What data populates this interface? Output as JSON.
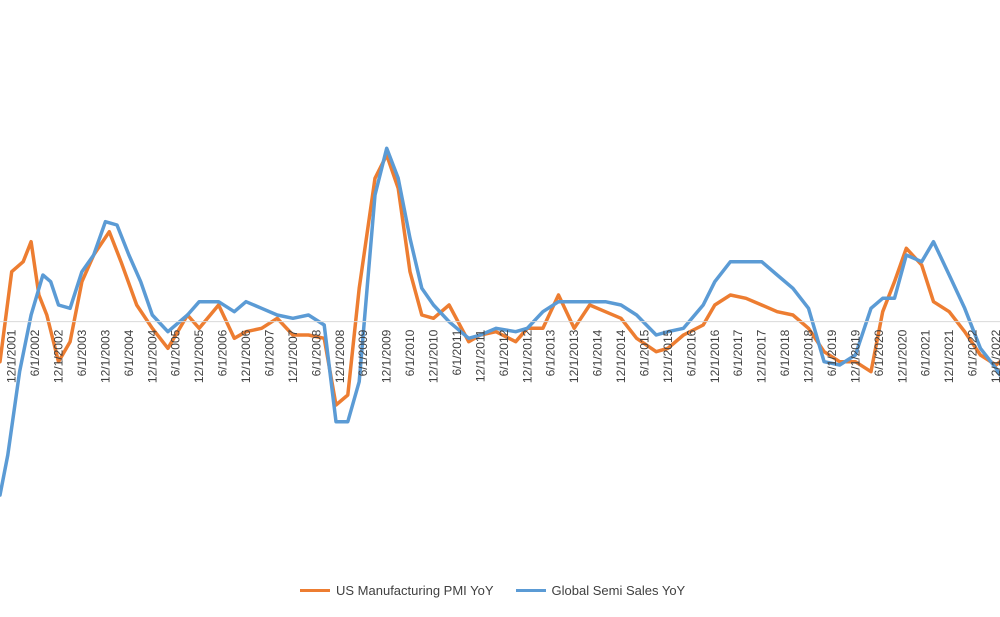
{
  "chart_data": {
    "type": "line",
    "title": "",
    "xlabel": "",
    "ylabel": "",
    "grid": false,
    "legend_position": "bottom",
    "x_tick_labels": [
      "12/1/2001",
      "6/1/2002",
      "12/1/2002",
      "6/1/2003",
      "12/1/2003",
      "6/1/2004",
      "12/1/2004",
      "6/1/2005",
      "12/1/2005",
      "6/1/2006",
      "12/1/2006",
      "6/1/2007",
      "12/1/2007",
      "6/1/2008",
      "12/1/2008",
      "6/1/2009",
      "12/1/2009",
      "6/1/2010",
      "12/1/2010",
      "6/1/2011",
      "12/1/2011",
      "6/1/2012",
      "12/1/2012",
      "6/1/2013",
      "12/1/2013",
      "6/1/2014",
      "12/1/2014",
      "6/1/2015",
      "12/1/2015",
      "6/1/2016",
      "12/1/2016",
      "6/1/2017",
      "12/1/2017",
      "6/1/2018",
      "12/1/2018",
      "6/1/2019",
      "12/1/2019",
      "6/1/2020",
      "12/1/2020",
      "6/1/2021",
      "12/1/2021",
      "6/1/2022",
      "12/1/2022"
    ],
    "x_range": [
      "2001-09-01",
      "2023-01-01"
    ],
    "y_range": [
      -0.55,
      0.8
    ],
    "series": [
      {
        "name": "US Manufacturing PMI YoY",
        "color": "#ED7D31",
        "points": [
          [
            "2001-09-01",
            -0.12
          ],
          [
            "2001-12-01",
            0.15
          ],
          [
            "2002-03-01",
            0.18
          ],
          [
            "2002-05-01",
            0.24
          ],
          [
            "2002-07-01",
            0.08
          ],
          [
            "2002-09-01",
            0.02
          ],
          [
            "2002-12-01",
            -0.12
          ],
          [
            "2003-03-01",
            -0.06
          ],
          [
            "2003-06-01",
            0.12
          ],
          [
            "2003-09-01",
            0.2
          ],
          [
            "2004-01-01",
            0.27
          ],
          [
            "2004-04-01",
            0.18
          ],
          [
            "2004-08-01",
            0.05
          ],
          [
            "2004-12-01",
            -0.02
          ],
          [
            "2005-04-01",
            -0.08
          ],
          [
            "2005-09-01",
            0.02
          ],
          [
            "2005-12-01",
            -0.02
          ],
          [
            "2006-05-01",
            0.05
          ],
          [
            "2006-09-01",
            -0.05
          ],
          [
            "2006-12-01",
            -0.03
          ],
          [
            "2007-04-01",
            -0.02
          ],
          [
            "2007-08-01",
            0.01
          ],
          [
            "2007-12-01",
            -0.04
          ],
          [
            "2008-04-01",
            -0.04
          ],
          [
            "2008-08-01",
            -0.05
          ],
          [
            "2008-11-01",
            -0.25
          ],
          [
            "2009-02-01",
            -0.22
          ],
          [
            "2009-05-01",
            0.1
          ],
          [
            "2009-09-01",
            0.43
          ],
          [
            "2009-12-01",
            0.5
          ],
          [
            "2010-03-01",
            0.4
          ],
          [
            "2010-06-01",
            0.15
          ],
          [
            "2010-09-01",
            0.02
          ],
          [
            "2010-12-01",
            0.01
          ],
          [
            "2011-04-01",
            0.05
          ],
          [
            "2011-09-01",
            -0.06
          ],
          [
            "2011-12-01",
            -0.04
          ],
          [
            "2012-04-01",
            -0.03
          ],
          [
            "2012-09-01",
            -0.06
          ],
          [
            "2012-12-01",
            -0.02
          ],
          [
            "2013-04-01",
            -0.02
          ],
          [
            "2013-08-01",
            0.08
          ],
          [
            "2013-12-01",
            -0.02
          ],
          [
            "2014-04-01",
            0.05
          ],
          [
            "2014-08-01",
            0.03
          ],
          [
            "2014-12-01",
            0.01
          ],
          [
            "2015-04-01",
            -0.05
          ],
          [
            "2015-09-01",
            -0.09
          ],
          [
            "2015-12-01",
            -0.08
          ],
          [
            "2016-04-01",
            -0.04
          ],
          [
            "2016-09-01",
            -0.01
          ],
          [
            "2016-12-01",
            0.05
          ],
          [
            "2017-04-01",
            0.08
          ],
          [
            "2017-08-01",
            0.07
          ],
          [
            "2017-12-01",
            0.05
          ],
          [
            "2018-04-01",
            0.03
          ],
          [
            "2018-08-01",
            0.02
          ],
          [
            "2018-12-01",
            -0.02
          ],
          [
            "2019-04-01",
            -0.09
          ],
          [
            "2019-08-01",
            -0.12
          ],
          [
            "2019-12-01",
            -0.12
          ],
          [
            "2020-04-01",
            -0.15
          ],
          [
            "2020-07-01",
            0.03
          ],
          [
            "2020-10-01",
            0.12
          ],
          [
            "2021-01-01",
            0.22
          ],
          [
            "2021-05-01",
            0.17
          ],
          [
            "2021-08-01",
            0.06
          ],
          [
            "2021-12-01",
            0.03
          ],
          [
            "2022-04-01",
            -0.03
          ],
          [
            "2022-08-01",
            -0.1
          ],
          [
            "2022-12-01",
            -0.13
          ],
          [
            "2023-01-01",
            -0.12
          ]
        ]
      },
      {
        "name": "Global Semi Sales YoY",
        "color": "#5B9BD5",
        "points": [
          [
            "2001-09-01",
            -0.52
          ],
          [
            "2001-11-01",
            -0.4
          ],
          [
            "2002-02-01",
            -0.15
          ],
          [
            "2002-05-01",
            0.02
          ],
          [
            "2002-08-01",
            0.14
          ],
          [
            "2002-10-01",
            0.12
          ],
          [
            "2002-12-01",
            0.05
          ],
          [
            "2003-03-01",
            0.04
          ],
          [
            "2003-06-01",
            0.15
          ],
          [
            "2003-09-01",
            0.2
          ],
          [
            "2003-12-01",
            0.3
          ],
          [
            "2004-03-01",
            0.29
          ],
          [
            "2004-06-01",
            0.2
          ],
          [
            "2004-09-01",
            0.12
          ],
          [
            "2004-12-01",
            0.02
          ],
          [
            "2005-04-01",
            -0.03
          ],
          [
            "2005-09-01",
            0.02
          ],
          [
            "2005-12-01",
            0.06
          ],
          [
            "2006-05-01",
            0.06
          ],
          [
            "2006-09-01",
            0.03
          ],
          [
            "2006-12-01",
            0.06
          ],
          [
            "2007-04-01",
            0.04
          ],
          [
            "2007-08-01",
            0.02
          ],
          [
            "2007-12-01",
            0.01
          ],
          [
            "2008-04-01",
            0.02
          ],
          [
            "2008-08-01",
            -0.01
          ],
          [
            "2008-11-01",
            -0.3
          ],
          [
            "2009-02-01",
            -0.3
          ],
          [
            "2009-05-01",
            -0.18
          ],
          [
            "2009-09-01",
            0.38
          ],
          [
            "2009-12-01",
            0.52
          ],
          [
            "2010-03-01",
            0.43
          ],
          [
            "2010-06-01",
            0.25
          ],
          [
            "2010-09-01",
            0.1
          ],
          [
            "2010-12-01",
            0.05
          ],
          [
            "2011-04-01",
            0.0
          ],
          [
            "2011-09-01",
            -0.05
          ],
          [
            "2011-12-01",
            -0.04
          ],
          [
            "2012-04-01",
            -0.02
          ],
          [
            "2012-09-01",
            -0.03
          ],
          [
            "2012-12-01",
            -0.02
          ],
          [
            "2013-04-01",
            0.03
          ],
          [
            "2013-08-01",
            0.06
          ],
          [
            "2013-12-01",
            0.06
          ],
          [
            "2014-04-01",
            0.06
          ],
          [
            "2014-08-01",
            0.06
          ],
          [
            "2014-12-01",
            0.05
          ],
          [
            "2015-04-01",
            0.02
          ],
          [
            "2015-09-01",
            -0.04
          ],
          [
            "2015-12-01",
            -0.03
          ],
          [
            "2016-04-01",
            -0.02
          ],
          [
            "2016-09-01",
            0.05
          ],
          [
            "2016-12-01",
            0.12
          ],
          [
            "2017-04-01",
            0.18
          ],
          [
            "2017-08-01",
            0.18
          ],
          [
            "2017-12-01",
            0.18
          ],
          [
            "2018-04-01",
            0.14
          ],
          [
            "2018-08-01",
            0.1
          ],
          [
            "2018-12-01",
            0.04
          ],
          [
            "2019-04-01",
            -0.12
          ],
          [
            "2019-08-01",
            -0.13
          ],
          [
            "2019-12-01",
            -0.1
          ],
          [
            "2020-04-01",
            0.04
          ],
          [
            "2020-07-01",
            0.07
          ],
          [
            "2020-10-01",
            0.07
          ],
          [
            "2021-01-01",
            0.2
          ],
          [
            "2021-05-01",
            0.18
          ],
          [
            "2021-08-01",
            0.24
          ],
          [
            "2021-12-01",
            0.14
          ],
          [
            "2022-04-01",
            0.04
          ],
          [
            "2022-08-01",
            -0.08
          ],
          [
            "2022-12-01",
            -0.14
          ],
          [
            "2023-01-01",
            -0.16
          ]
        ]
      }
    ]
  }
}
